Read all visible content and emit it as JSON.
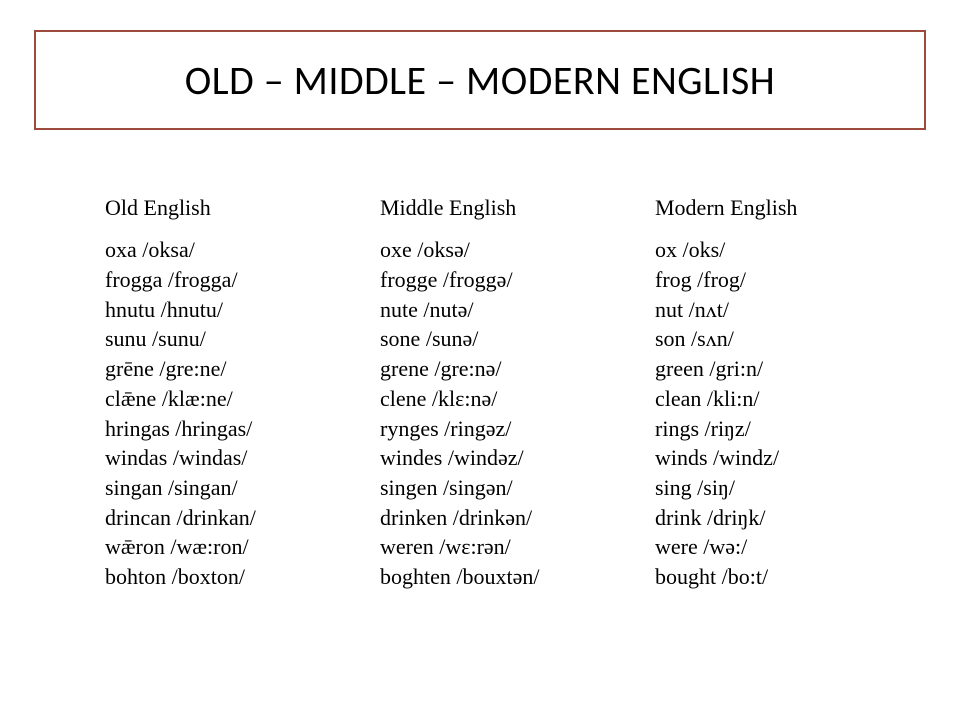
{
  "slide": {
    "title": "OLD – MIDDLE – MODERN ENGLISH",
    "border_color": "#9c4a3c",
    "background": "#ffffff",
    "title_font": "Calibri",
    "body_font": "Times New Roman",
    "title_fontsize": 40,
    "body_fontsize": 22
  },
  "columns": [
    {
      "header": "Old English",
      "items": [
        "oxa /oksa/",
        "frogga /frogga/",
        "hnutu /hnutu/",
        "sunu /sunu/",
        "grēne /gre:ne/",
        "clǣne /klæ:ne/",
        "hringas /hringas/",
        "windas /windas/",
        "singan /singan/",
        "drincan /drinkan/",
        "wǣron /wæ:ron/",
        "bohton /boxton/"
      ]
    },
    {
      "header": "Middle English",
      "items": [
        "oxe /oksə/",
        "frogge /froggə/",
        "nute /nutə/",
        "sone /sunə/",
        "grene /gre:nə/",
        "clene /klɛ:nə/",
        "rynges /ringəz/",
        "windes /windəz/",
        "singen /singən/",
        "drinken /drinkən/",
        "weren /wɛ:rən/",
        "boghten /bouxtən/"
      ]
    },
    {
      "header": "Modern English",
      "items": [
        "ox /oks/",
        "frog /frog/",
        "nut /nʌt/",
        "son /sʌn/",
        "green /gri:n/",
        "clean /kli:n/",
        "rings /riŋz/",
        "winds /windz/",
        "sing /siŋ/",
        "drink /driŋk/",
        "were /wə:/",
        "bought /bo:t/"
      ]
    }
  ]
}
